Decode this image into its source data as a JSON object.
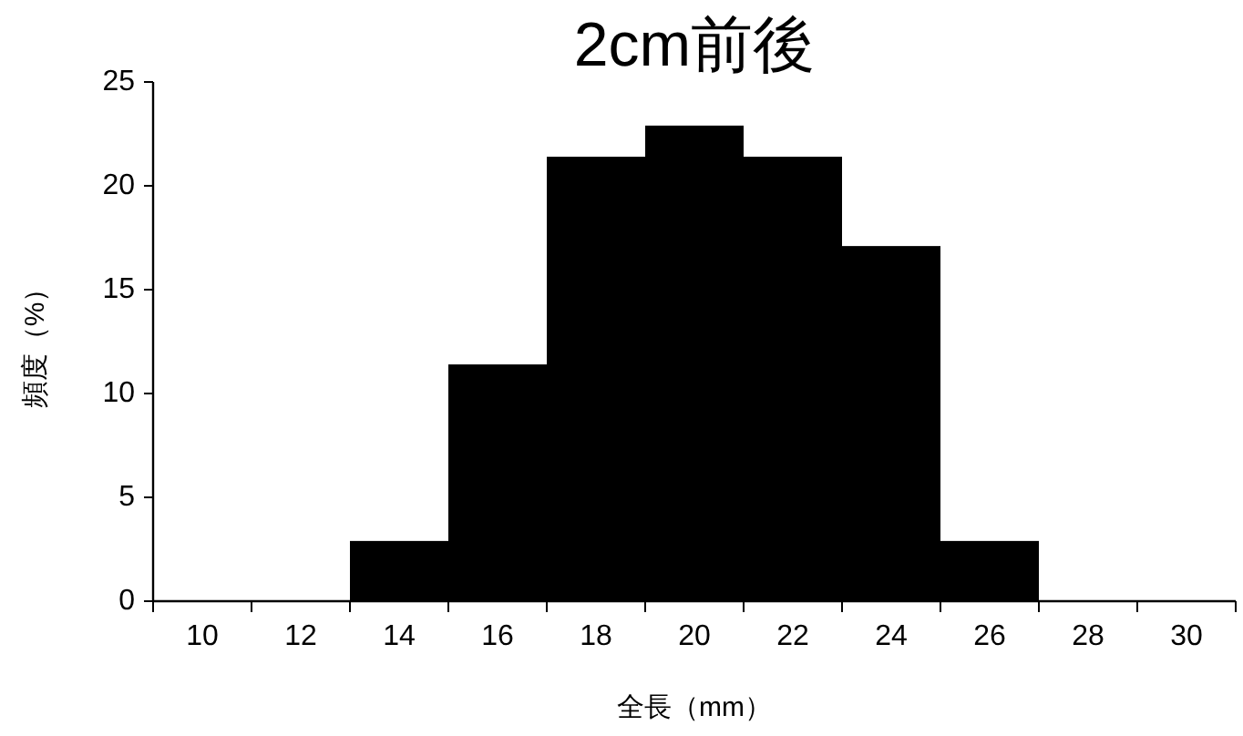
{
  "chart_data": {
    "type": "bar",
    "title": "2cm前後",
    "xlabel": "全長（mm）",
    "ylabel": "頻度（%）",
    "categories": [
      "10",
      "12",
      "14",
      "16",
      "18",
      "20",
      "22",
      "24",
      "26",
      "28",
      "30"
    ],
    "values": [
      0,
      0,
      2.9,
      11.4,
      21.4,
      22.9,
      21.4,
      17.1,
      2.9,
      0,
      0
    ],
    "color": "#000000",
    "ylim": [
      0,
      25
    ],
    "yticks": [
      0,
      5,
      10,
      15,
      20,
      25
    ],
    "grid": false
  }
}
